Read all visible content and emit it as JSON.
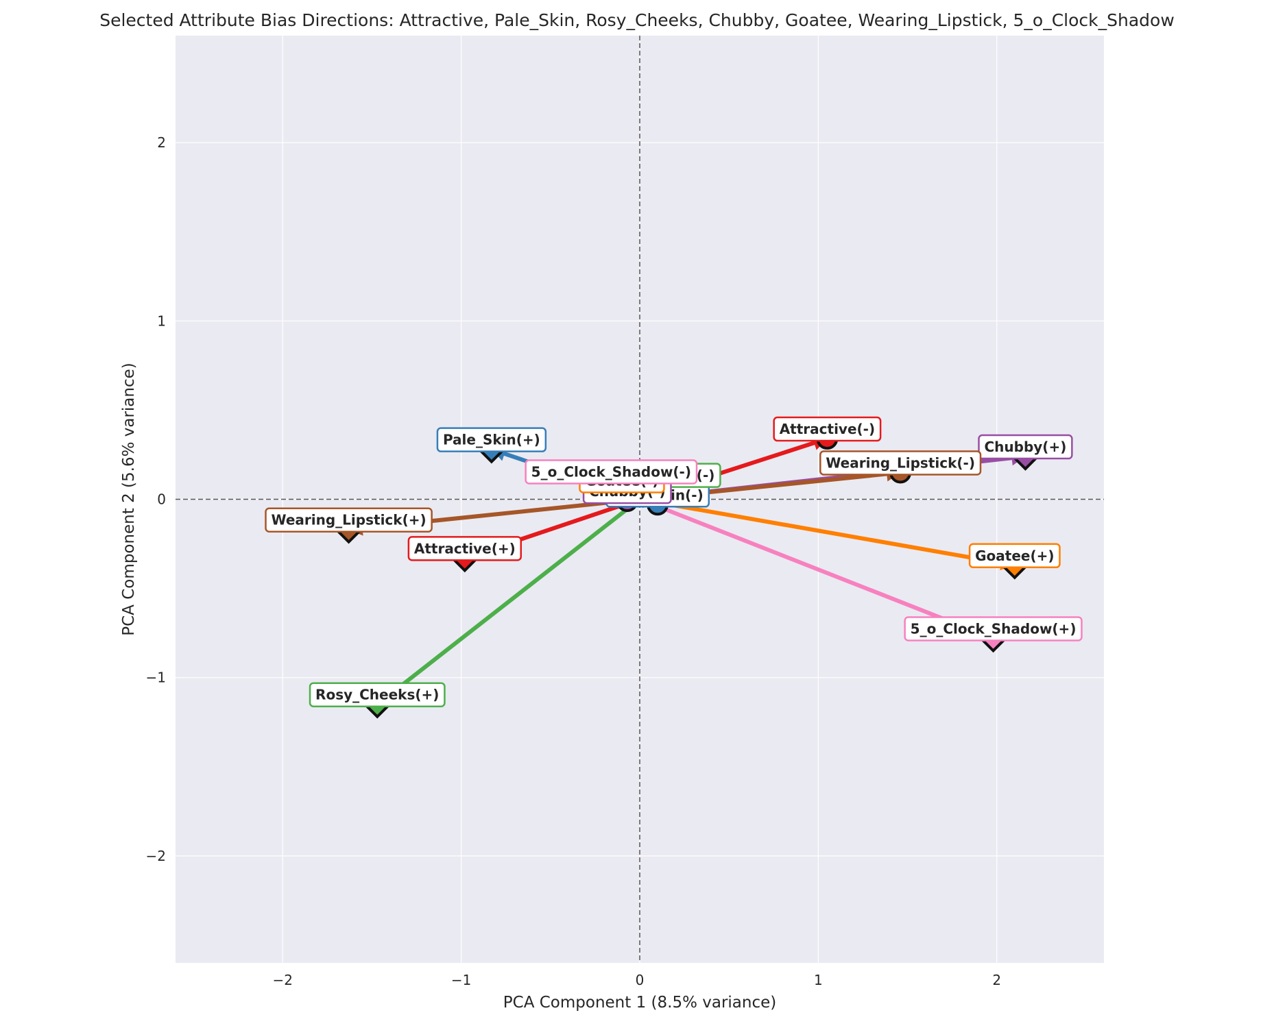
{
  "chart_data": {
    "type": "scatter",
    "title": "Selected Attribute Bias Directions: Attractive, Pale_Skin, Rosy_Cheeks, Chubby, Goatee, Wearing_Lipstick, 5_o_Clock_Shadow",
    "xlabel": "PCA Component 1 (8.5% variance)",
    "ylabel": "PCA Component 2 (5.6% variance)",
    "xlim": [
      -2.6,
      2.6
    ],
    "ylim": [
      -2.6,
      2.6
    ],
    "xticks": [
      -2,
      -1,
      0,
      1,
      2
    ],
    "yticks": [
      -2,
      -1,
      0,
      1,
      2
    ],
    "xtick_labels": [
      "−2",
      "−1",
      "0",
      "1",
      "2"
    ],
    "ytick_labels": [
      "−2",
      "−1",
      "0",
      "1",
      "2"
    ],
    "grid": true,
    "background": "#eaeaf2",
    "reference_lines": {
      "x": 0,
      "y": 0,
      "style": "dashed"
    },
    "series": [
      {
        "name": "Attractive",
        "color": "#e41a1c",
        "plus": {
          "label": "Attractive(+)",
          "x": -0.98,
          "y": -0.33
        },
        "minus": {
          "label": "Attractive(-)",
          "x": 1.05,
          "y": 0.34
        }
      },
      {
        "name": "Pale_Skin",
        "color": "#377eb8",
        "plus": {
          "label": "Pale_Skin(+)",
          "x": -0.83,
          "y": 0.28
        },
        "minus": {
          "label": "Pale_Skin(-)",
          "x": 0.1,
          "y": -0.03
        }
      },
      {
        "name": "Rosy_Cheeks",
        "color": "#4daf4a",
        "plus": {
          "label": "Rosy_Cheeks(+)",
          "x": -1.47,
          "y": -1.15
        },
        "minus": {
          "label": "Rosy_Cheeks(-)",
          "x": 0.09,
          "y": 0.08
        }
      },
      {
        "name": "Chubby",
        "color": "#984ea3",
        "plus": {
          "label": "Chubby(+)",
          "x": 2.16,
          "y": 0.24
        },
        "minus": {
          "label": "Chubby(-)",
          "x": -0.07,
          "y": -0.01
        }
      },
      {
        "name": "Goatee",
        "color": "#ff7f00",
        "plus": {
          "label": "Goatee(+)",
          "x": 2.1,
          "y": -0.37
        },
        "minus": {
          "label": "Goatee(-)",
          "x": -0.1,
          "y": 0.05
        }
      },
      {
        "name": "Wearing_Lipstick",
        "color": "#a65628",
        "plus": {
          "label": "Wearing_Lipstick(+)",
          "x": -1.63,
          "y": -0.17
        },
        "minus": {
          "label": "Wearing_Lipstick(-)",
          "x": 1.46,
          "y": 0.15
        }
      },
      {
        "name": "5_o_Clock_Shadow",
        "color": "#f781bf",
        "plus": {
          "label": "5_o_Clock_Shadow(+)",
          "x": 1.98,
          "y": -0.78
        },
        "minus": {
          "label": "5_o_Clock_Shadow(-)",
          "x": -0.16,
          "y": 0.1
        }
      }
    ]
  }
}
